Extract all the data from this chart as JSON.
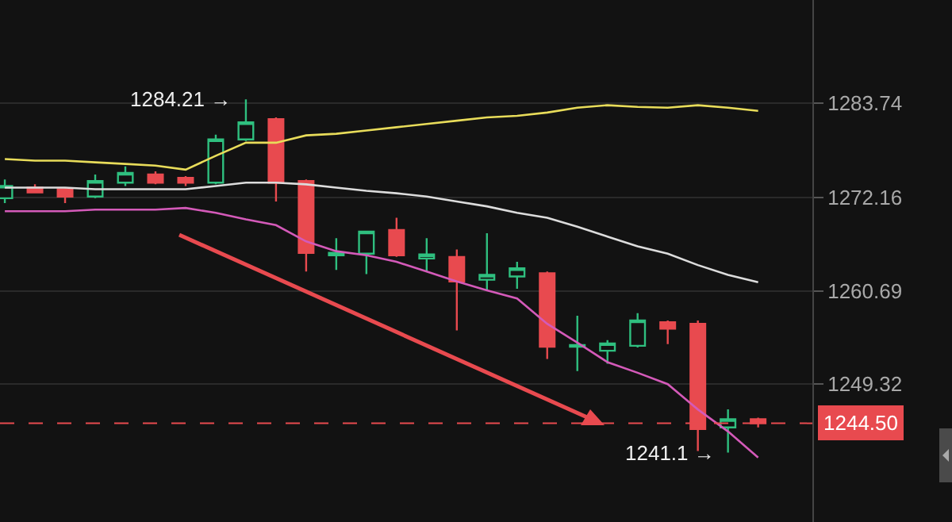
{
  "chart_data": {
    "type": "candlestick",
    "categories": [
      null,
      null,
      null,
      null,
      null,
      null,
      null,
      null,
      null,
      null,
      null,
      null,
      null,
      null,
      null,
      null,
      null,
      null,
      null,
      null,
      null,
      null,
      null,
      null,
      null,
      null
    ],
    "ohlc": [
      [
        1272.1,
        1274.4,
        1271.5,
        1273.6
      ],
      [
        1273.4,
        1273.8,
        1272.8,
        1272.8
      ],
      [
        1273.2,
        1273.4,
        1271.5,
        1272.3
      ],
      [
        1272.3,
        1275.0,
        1272.1,
        1274.2
      ],
      [
        1274.0,
        1276.0,
        1273.6,
        1275.2
      ],
      [
        1275.0,
        1275.4,
        1273.8,
        1274.0
      ],
      [
        1274.6,
        1274.8,
        1273.6,
        1274.0
      ],
      [
        1274.0,
        1279.9,
        1273.8,
        1279.3
      ],
      [
        1279.3,
        1284.21,
        1279.1,
        1281.4
      ],
      [
        1281.8,
        1282.0,
        1271.7,
        1274.0
      ],
      [
        1274.2,
        1274.4,
        1263.1,
        1265.4
      ],
      [
        1265.1,
        1267.2,
        1263.3,
        1265.4
      ],
      [
        1265.3,
        1268.1,
        1262.8,
        1268.0
      ],
      [
        1268.2,
        1269.7,
        1264.9,
        1265.1
      ],
      [
        1264.7,
        1267.2,
        1263.1,
        1265.2
      ],
      [
        1264.9,
        1265.8,
        1255.9,
        1261.9
      ],
      [
        1262.1,
        1267.8,
        1260.8,
        1262.7
      ],
      [
        1262.5,
        1264.3,
        1261.0,
        1263.5
      ],
      [
        1262.9,
        1263.1,
        1252.4,
        1253.9
      ],
      [
        1253.9,
        1257.7,
        1250.9,
        1254.1
      ],
      [
        1253.4,
        1254.7,
        1251.8,
        1254.3
      ],
      [
        1254.0,
        1258.0,
        1253.8,
        1257.1
      ],
      [
        1256.9,
        1257.1,
        1254.2,
        1256.1
      ],
      [
        1256.7,
        1257.1,
        1241.1,
        1243.8
      ],
      [
        1244.0,
        1246.2,
        1240.9,
        1245.0
      ],
      [
        1245.0,
        1245.2,
        1244.0,
        1244.5
      ]
    ],
    "colors": [
      "#2fbf7f",
      "#e84a4f",
      "#e84a4f",
      "#2fbf7f",
      "#2fbf7f",
      "#e84a4f",
      "#e84a4f",
      "#2fbf7f",
      "#2fbf7f",
      "#e84a4f",
      "#e84a4f",
      "#2fbf7f",
      "#2fbf7f",
      "#e84a4f",
      "#2fbf7f",
      "#e84a4f",
      "#2fbf7f",
      "#2fbf7f",
      "#e84a4f",
      "#2fbf7f",
      "#2fbf7f",
      "#2fbf7f",
      "#e84a4f",
      "#e84a4f",
      "#2fbf7f",
      "#e84a4f"
    ],
    "series": [
      {
        "type": "line",
        "color": "#e8dc5a",
        "values": [
          1276.9,
          1276.7,
          1276.7,
          1276.5,
          1276.3,
          1276.1,
          1275.6,
          1277.3,
          1278.9,
          1278.9,
          1279.8,
          1280.0,
          1280.4,
          1280.8,
          1281.2,
          1281.6,
          1282.0,
          1282.2,
          1282.6,
          1283.2,
          1283.5,
          1283.3,
          1283.2,
          1283.5,
          1283.2,
          1282.8
        ]
      },
      {
        "type": "line",
        "color": "#dcdcdc",
        "values": [
          1273.4,
          1273.4,
          1273.4,
          1273.2,
          1273.2,
          1273.2,
          1273.2,
          1273.6,
          1274.0,
          1274.0,
          1273.8,
          1273.4,
          1273.0,
          1272.7,
          1272.3,
          1271.7,
          1271.1,
          1270.3,
          1269.7,
          1268.6,
          1267.4,
          1266.2,
          1265.3,
          1263.9,
          1262.7,
          1261.8
        ]
      },
      {
        "type": "line",
        "color": "#d45ab9",
        "values": [
          1270.5,
          1270.5,
          1270.5,
          1270.7,
          1270.7,
          1270.7,
          1270.9,
          1270.3,
          1269.5,
          1268.8,
          1266.8,
          1265.6,
          1265.1,
          1264.3,
          1263.1,
          1261.9,
          1260.8,
          1259.8,
          1256.7,
          1254.4,
          1252.0,
          1250.7,
          1249.3,
          1246.2,
          1243.5,
          1240.3
        ]
      }
    ],
    "ylim": [
      1232.4,
      1296.4
    ],
    "yticks": [
      1283.74,
      1272.16,
      1260.69,
      1249.32
    ],
    "ref_lines": [
      {
        "axis": "y",
        "value": 1244.5,
        "label": "1244.50",
        "color": "#e84a4f",
        "line_style": "dashed"
      }
    ],
    "annotations": [
      "1284.21 →",
      "1241.1 →"
    ],
    "grid": "y",
    "tick_labels": "y",
    "line_style": "solid",
    "marker": "none"
  }
}
